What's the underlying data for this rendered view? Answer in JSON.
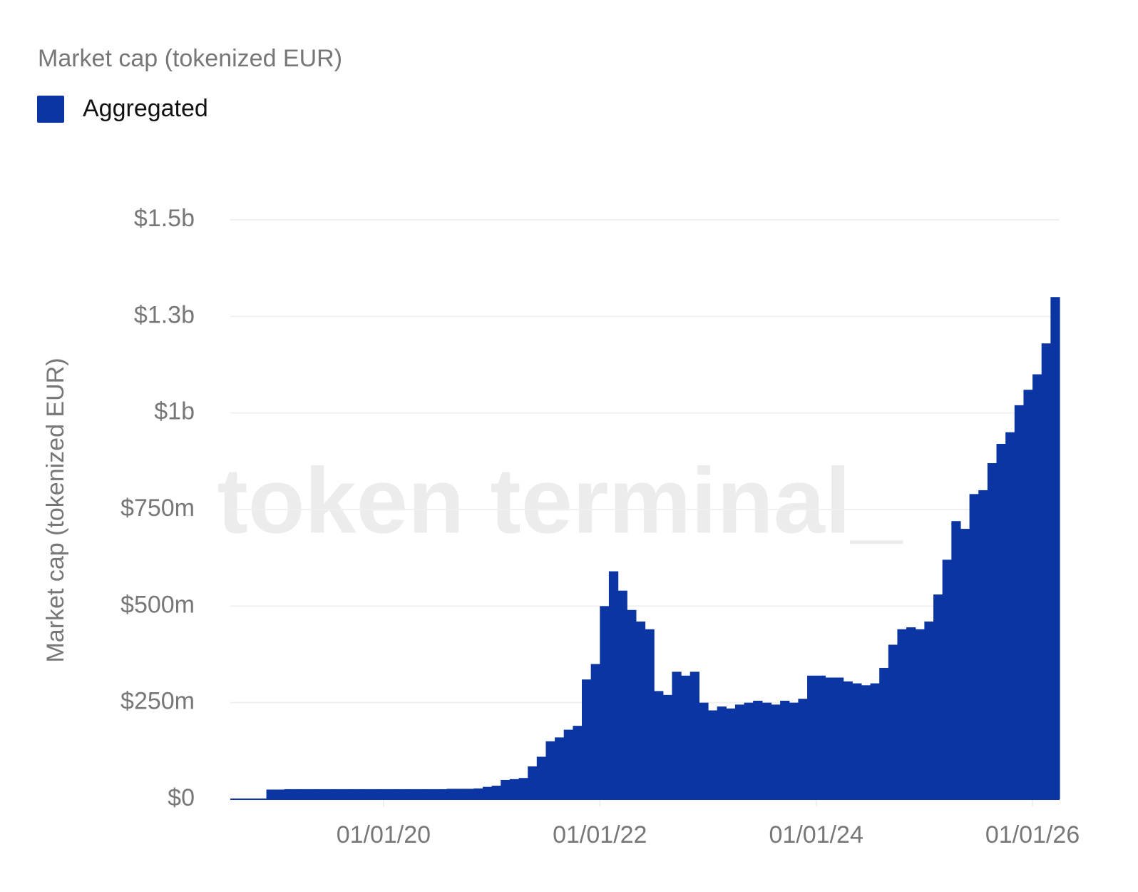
{
  "chart_data": {
    "type": "bar",
    "title": "Market cap (tokenized EUR)",
    "y_label": "Market cap (tokenized EUR)",
    "watermark": "token terminal_",
    "series": [
      {
        "name": "Aggregated",
        "color": "#0b35a3",
        "values": [
          0,
          0,
          0,
          0,
          25,
          25,
          26,
          26,
          26,
          26,
          26,
          26,
          26,
          26,
          26,
          26,
          26,
          26,
          26,
          26,
          26,
          26,
          26,
          26,
          27,
          27,
          27,
          28,
          32,
          35,
          50,
          52,
          55,
          85,
          110,
          150,
          160,
          180,
          190,
          310,
          350,
          500,
          590,
          540,
          490,
          460,
          440,
          280,
          270,
          330,
          320,
          330,
          250,
          230,
          240,
          235,
          245,
          250,
          255,
          250,
          245,
          255,
          250,
          260,
          320,
          320,
          315,
          315,
          305,
          300,
          295,
          300,
          340,
          400,
          440,
          445,
          440,
          460,
          530,
          620,
          720,
          700,
          790,
          800,
          870,
          920,
          950,
          1020,
          1060,
          1100,
          1180,
          1300
        ]
      }
    ],
    "categories": [
      null,
      null,
      null,
      null,
      null,
      null,
      null,
      null,
      null,
      null,
      null,
      null,
      null,
      null,
      null,
      null,
      null,
      "01/01/20",
      null,
      null,
      null,
      null,
      null,
      null,
      null,
      null,
      null,
      null,
      null,
      null,
      null,
      null,
      null,
      null,
      null,
      null,
      null,
      null,
      null,
      null,
      null,
      "01/01/22",
      null,
      null,
      null,
      null,
      null,
      null,
      null,
      null,
      null,
      null,
      null,
      null,
      null,
      null,
      null,
      null,
      null,
      null,
      null,
      null,
      null,
      null,
      null,
      "01/01/24",
      null,
      null,
      null,
      null,
      null,
      null,
      null,
      null,
      null,
      null,
      null,
      null,
      null,
      null,
      null,
      null,
      null,
      null,
      null,
      null,
      null,
      null,
      null,
      "01/01/26",
      null,
      null
    ],
    "ylim": [
      0,
      1500
    ],
    "yticks": [
      {
        "value": 0,
        "label": "$0"
      },
      {
        "value": 250,
        "label": "$250m"
      },
      {
        "value": 500,
        "label": "$500m"
      },
      {
        "value": 750,
        "label": "$750m"
      },
      {
        "value": 1000,
        "label": "$1b"
      },
      {
        "value": 1250,
        "label": "$1.3b"
      },
      {
        "value": 1500,
        "label": "$1.5b"
      }
    ],
    "grid": true
  }
}
